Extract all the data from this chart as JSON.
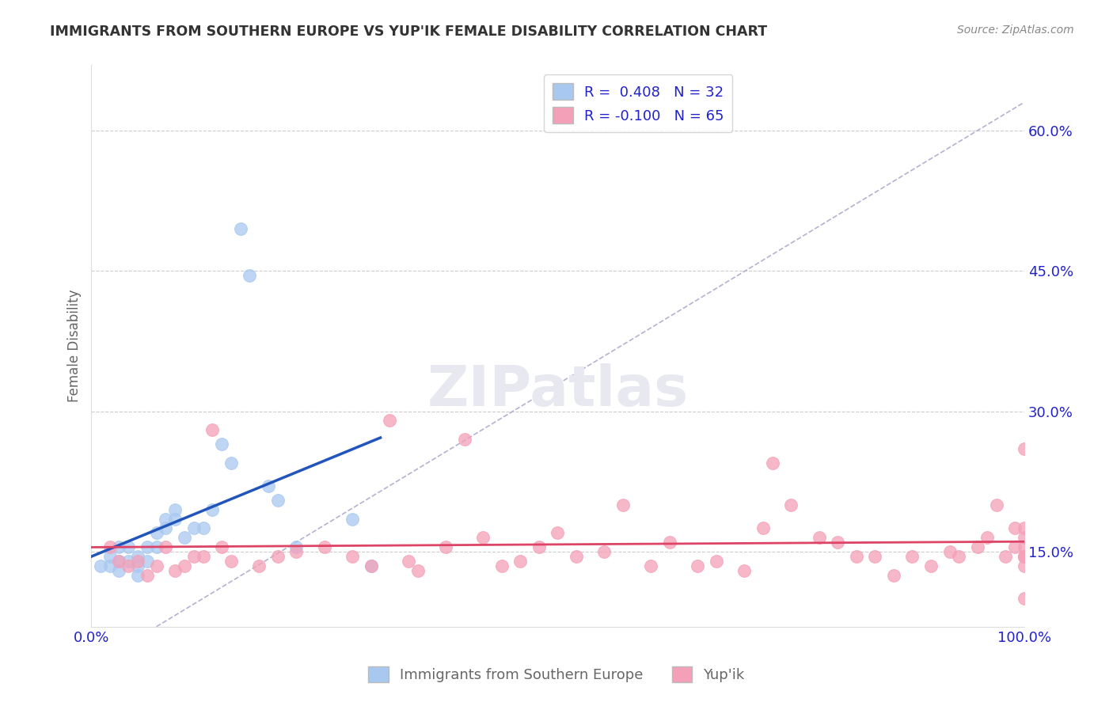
{
  "title": "IMMIGRANTS FROM SOUTHERN EUROPE VS YUP'IK FEMALE DISABILITY CORRELATION CHART",
  "source_text": "Source: ZipAtlas.com",
  "ylabel": "Female Disability",
  "x_tick_labels": [
    "0.0%",
    "100.0%"
  ],
  "y_tick_values": [
    0.15,
    0.3,
    0.45,
    0.6
  ],
  "x_lim": [
    0.0,
    1.0
  ],
  "y_lim": [
    0.07,
    0.67
  ],
  "legend_r_blue": "0.408",
  "legend_n_blue": "32",
  "legend_r_pink": "-0.100",
  "legend_n_pink": "65",
  "legend_label_blue": "Immigrants from Southern Europe",
  "legend_label_pink": "Yup'ik",
  "blue_scatter_x": [
    0.01,
    0.02,
    0.02,
    0.03,
    0.03,
    0.03,
    0.04,
    0.04,
    0.05,
    0.05,
    0.05,
    0.06,
    0.06,
    0.07,
    0.07,
    0.08,
    0.08,
    0.09,
    0.09,
    0.1,
    0.11,
    0.12,
    0.13,
    0.14,
    0.15,
    0.16,
    0.17,
    0.19,
    0.2,
    0.22,
    0.28,
    0.3
  ],
  "blue_scatter_y": [
    0.135,
    0.135,
    0.145,
    0.13,
    0.14,
    0.155,
    0.14,
    0.155,
    0.125,
    0.135,
    0.145,
    0.14,
    0.155,
    0.155,
    0.17,
    0.175,
    0.185,
    0.185,
    0.195,
    0.165,
    0.175,
    0.175,
    0.195,
    0.265,
    0.245,
    0.495,
    0.445,
    0.22,
    0.205,
    0.155,
    0.185,
    0.135
  ],
  "pink_scatter_x": [
    0.02,
    0.03,
    0.04,
    0.05,
    0.06,
    0.07,
    0.08,
    0.09,
    0.1,
    0.11,
    0.12,
    0.13,
    0.14,
    0.15,
    0.18,
    0.2,
    0.22,
    0.25,
    0.28,
    0.3,
    0.32,
    0.34,
    0.35,
    0.38,
    0.4,
    0.42,
    0.44,
    0.46,
    0.48,
    0.5,
    0.52,
    0.55,
    0.57,
    0.6,
    0.62,
    0.65,
    0.67,
    0.7,
    0.72,
    0.73,
    0.75,
    0.78,
    0.8,
    0.82,
    0.84,
    0.86,
    0.88,
    0.9,
    0.92,
    0.93,
    0.95,
    0.96,
    0.97,
    0.98,
    0.99,
    0.99,
    1.0,
    1.0,
    1.0,
    1.0,
    1.0,
    1.0,
    1.0,
    1.0,
    1.0
  ],
  "pink_scatter_y": [
    0.155,
    0.14,
    0.135,
    0.14,
    0.125,
    0.135,
    0.155,
    0.13,
    0.135,
    0.145,
    0.145,
    0.28,
    0.155,
    0.14,
    0.135,
    0.145,
    0.15,
    0.155,
    0.145,
    0.135,
    0.29,
    0.14,
    0.13,
    0.155,
    0.27,
    0.165,
    0.135,
    0.14,
    0.155,
    0.17,
    0.145,
    0.15,
    0.2,
    0.135,
    0.16,
    0.135,
    0.14,
    0.13,
    0.175,
    0.245,
    0.2,
    0.165,
    0.16,
    0.145,
    0.145,
    0.125,
    0.145,
    0.135,
    0.15,
    0.145,
    0.155,
    0.165,
    0.2,
    0.145,
    0.175,
    0.155,
    0.155,
    0.165,
    0.145,
    0.135,
    0.26,
    0.145,
    0.1,
    0.175,
    0.145
  ],
  "background_color": "#ffffff",
  "plot_bg_color": "#ffffff",
  "grid_color": "#cccccc",
  "blue_color": "#a8c8f0",
  "pink_color": "#f4a0b8",
  "blue_line_color": "#2255bb",
  "pink_line_color": "#dd4466",
  "diagonal_color": "#aaaacc",
  "title_color": "#333333",
  "source_color": "#888888",
  "axis_label_color": "#666666",
  "tick_color": "#2222cc",
  "right_tick_color": "#2222cc",
  "watermark_color": "#e8e8f0"
}
